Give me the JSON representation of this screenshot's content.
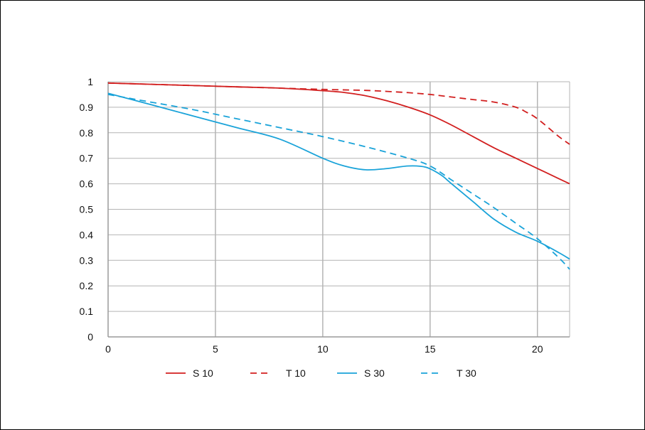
{
  "chart_data": {
    "type": "line",
    "xlim": [
      0,
      21.5
    ],
    "ylim": [
      0,
      1
    ],
    "x_ticks": [
      0,
      5,
      10,
      15,
      20
    ],
    "x_tick_labels": [
      "0",
      "5",
      "10",
      "15",
      "20"
    ],
    "y_ticks": [
      0,
      0.1,
      0.2,
      0.3,
      0.4,
      0.5,
      0.6,
      0.7,
      0.8,
      0.9,
      1
    ],
    "y_tick_labels": [
      "0",
      "0.1",
      "0.2",
      "0.3",
      "0.4",
      "0.5",
      "0.6",
      "0.7",
      "0.8",
      "0.9",
      "1"
    ],
    "grid": true,
    "legend_position": "bottom",
    "series": [
      {
        "name": "S 10",
        "color": "#d21f1f",
        "dashed": false,
        "x": [
          0,
          2,
          4,
          6,
          8,
          10,
          11,
          12,
          13,
          14,
          15,
          16,
          17,
          18,
          19,
          20,
          21,
          21.5
        ],
        "y": [
          0.995,
          0.99,
          0.985,
          0.98,
          0.975,
          0.965,
          0.958,
          0.945,
          0.925,
          0.9,
          0.87,
          0.83,
          0.785,
          0.74,
          0.7,
          0.66,
          0.62,
          0.6
        ]
      },
      {
        "name": "T 10",
        "color": "#d21f1f",
        "dashed": true,
        "x": [
          0,
          2,
          4,
          6,
          8,
          10,
          12,
          13,
          14,
          15,
          16,
          17,
          18,
          19,
          19.5,
          20,
          21,
          21.5
        ],
        "y": [
          0.995,
          0.99,
          0.985,
          0.98,
          0.975,
          0.97,
          0.966,
          0.962,
          0.957,
          0.95,
          0.94,
          0.93,
          0.92,
          0.9,
          0.88,
          0.855,
          0.785,
          0.755
        ]
      },
      {
        "name": "S 30",
        "color": "#1aa3d9",
        "dashed": false,
        "x": [
          0,
          2,
          4,
          6,
          8,
          10,
          11,
          12,
          13,
          14,
          14.8,
          15.5,
          16,
          17,
          18,
          19,
          20,
          21,
          21.5
        ],
        "y": [
          0.955,
          0.91,
          0.865,
          0.82,
          0.775,
          0.7,
          0.67,
          0.655,
          0.66,
          0.67,
          0.665,
          0.635,
          0.6,
          0.53,
          0.46,
          0.41,
          0.375,
          0.33,
          0.305
        ]
      },
      {
        "name": "T 30",
        "color": "#1aa3d9",
        "dashed": true,
        "x": [
          0,
          2,
          4,
          6,
          8,
          10,
          12,
          14,
          15,
          16,
          17,
          18,
          19,
          20,
          21,
          21.5
        ],
        "y": [
          0.95,
          0.92,
          0.89,
          0.855,
          0.82,
          0.785,
          0.745,
          0.7,
          0.67,
          0.615,
          0.56,
          0.505,
          0.445,
          0.385,
          0.31,
          0.265
        ]
      }
    ]
  }
}
